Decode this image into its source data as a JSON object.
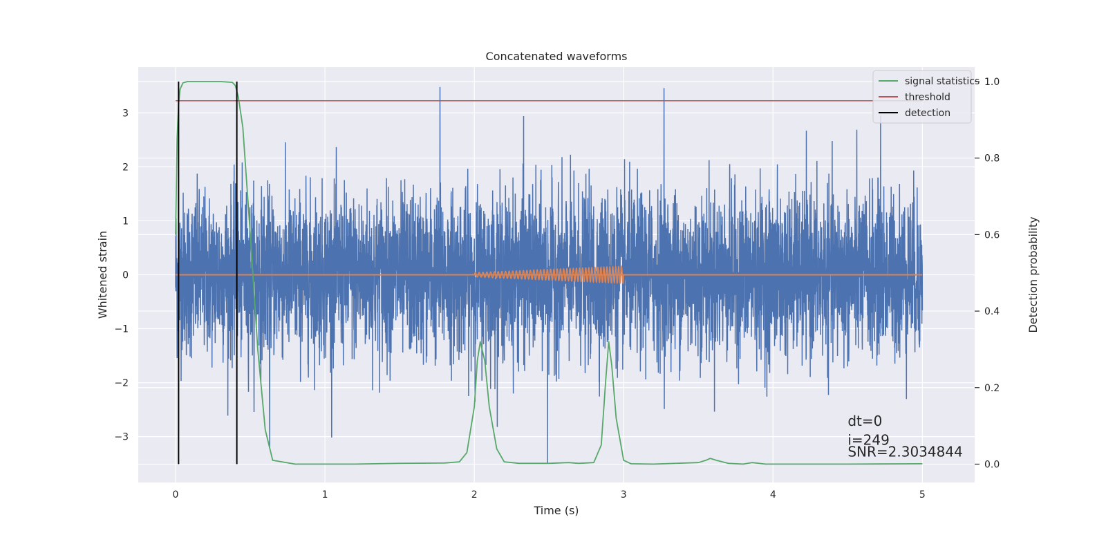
{
  "chart_data": {
    "type": "line",
    "title": "Concatenated waveforms",
    "xlabel": "Time (s)",
    "ylabel": "Whitened strain",
    "y2label": "Detection probability",
    "xlim": [
      -0.25,
      5.35
    ],
    "ylim": [
      -3.85,
      3.85
    ],
    "y2lim": [
      -0.048,
      1.038
    ],
    "xticks": [
      0,
      1,
      2,
      3,
      4,
      5
    ],
    "yticks": [
      -3,
      -2,
      -1,
      0,
      1,
      2,
      3
    ],
    "y2ticks": [
      0.0,
      0.2,
      0.4,
      0.6,
      0.8,
      1.0
    ],
    "xtick_labels": [
      "0",
      "1",
      "2",
      "3",
      "4",
      "5"
    ],
    "ytick_labels": [
      "−3",
      "−2",
      "−1",
      "0",
      "1",
      "2",
      "3"
    ],
    "y2tick_labels": [
      "0.0",
      "0.2",
      "0.4",
      "0.6",
      "0.8",
      "1.0"
    ],
    "grid": true,
    "legend_position": "top-right",
    "legend": [
      {
        "label": "signal statistics",
        "color": "#55a868"
      },
      {
        "label": "threshold",
        "color": "#c44e52"
      },
      {
        "label": "detection",
        "color": "#000000"
      }
    ],
    "series": [
      {
        "name": "",
        "axis": "left",
        "color": "#4c72b0",
        "description_values": {
          "x_range": [
            0,
            5
          ],
          "y_range": [
            -3.6,
            3.5
          ],
          "noise_std": 0.75,
          "peaks": [
            [
              1.77,
              3.48
            ],
            [
              3.27,
              3.46
            ],
            [
              2.49,
              -3.5
            ],
            [
              0.02,
              -3.2
            ],
            [
              0.63,
              -3.2
            ],
            [
              2.33,
              2.94
            ],
            [
              4.72,
              2.95
            ]
          ]
        }
      },
      {
        "name": "",
        "axis": "left",
        "color": "#dd8452",
        "chirp": {
          "x_start": 2.0,
          "x_end": 3.0,
          "amp_start": 0.04,
          "amp_end": 0.16,
          "f_start": 38,
          "f_end": 52
        }
      },
      {
        "name": "signal statistics",
        "axis": "right",
        "color": "#55a868",
        "x": [
          0,
          0.01,
          0.02,
          0.03,
          0.05,
          0.08,
          0.12,
          0.2,
          0.3,
          0.38,
          0.4,
          0.42,
          0.45,
          0.5,
          0.55,
          0.6,
          0.65,
          0.8,
          1.2,
          1.5,
          1.8,
          1.9,
          1.95,
          2.0,
          2.02,
          2.04,
          2.07,
          2.1,
          2.15,
          2.2,
          2.3,
          2.5,
          2.63,
          2.7,
          2.8,
          2.85,
          2.88,
          2.9,
          2.92,
          2.95,
          3.0,
          3.05,
          3.2,
          3.5,
          3.55,
          3.58,
          3.62,
          3.7,
          3.8,
          3.86,
          3.95,
          4.5,
          5.0
        ],
        "y": [
          0.6,
          0.85,
          0.94,
          0.98,
          0.997,
          1.0,
          1.0,
          1.0,
          1.0,
          0.998,
          0.99,
          0.96,
          0.88,
          0.6,
          0.3,
          0.09,
          0.01,
          0.0,
          0.0,
          0.002,
          0.003,
          0.006,
          0.03,
          0.15,
          0.27,
          0.32,
          0.27,
          0.15,
          0.04,
          0.006,
          0.002,
          0.002,
          0.004,
          0.002,
          0.004,
          0.05,
          0.22,
          0.32,
          0.26,
          0.12,
          0.01,
          0.001,
          0.0,
          0.004,
          0.01,
          0.015,
          0.01,
          0.002,
          0.0,
          0.004,
          0.0,
          0.0,
          0.001
        ]
      },
      {
        "name": "threshold",
        "axis": "right",
        "color": "#c44e52",
        "x": [
          0,
          5
        ],
        "y": [
          0.95,
          0.95
        ]
      },
      {
        "name": "detection",
        "axis": "right",
        "color": "#000000",
        "vlines_x": [
          0.02,
          0.41
        ],
        "vlines_yrange": [
          0.0,
          1.0
        ]
      }
    ],
    "annotations": [
      {
        "text": "dt=0",
        "x": 4.5,
        "y": -2.8
      },
      {
        "text": "i=249",
        "x": 4.5,
        "y": -3.15
      },
      {
        "text": "SNR=2.3034844",
        "x": 4.5,
        "y": -3.37
      }
    ]
  }
}
